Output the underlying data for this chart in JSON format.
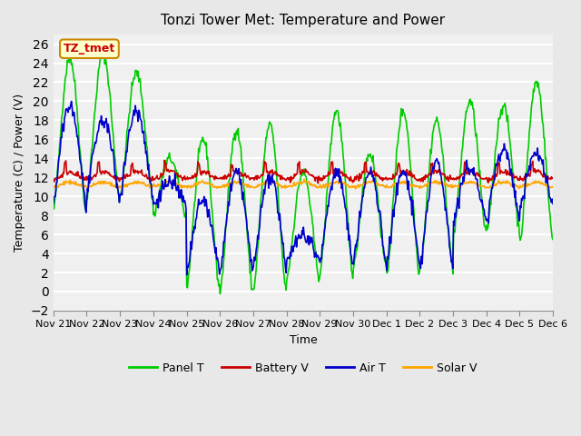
{
  "title": "Tonzi Tower Met: Temperature and Power",
  "xlabel": "Time",
  "ylabel": "Temperature (C) / Power (V)",
  "annotation": "TZ_tmet",
  "ylim": [
    -2,
    27
  ],
  "yticks": [
    -2,
    0,
    2,
    4,
    6,
    8,
    10,
    12,
    14,
    16,
    18,
    20,
    22,
    24,
    26
  ],
  "x_tick_labels": [
    "Nov 21",
    "Nov 22",
    "Nov 23",
    "Nov 24",
    "Nov 25",
    "Nov 26",
    "Nov 27",
    "Nov 28",
    "Nov 29",
    "Nov 30",
    "Dec 1",
    "Dec 2",
    "Dec 3",
    "Dec 4",
    "Dec 5",
    "Dec 6"
  ],
  "background_color": "#e8e8e8",
  "plot_bg_color": "#f0f0f0",
  "grid_color": "#ffffff",
  "panel_t_color": "#00cc00",
  "battery_v_color": "#cc0000",
  "air_t_color": "#0000cc",
  "solar_v_color": "#ffa500",
  "legend_labels": [
    "Panel T",
    "Battery V",
    "Air T",
    "Solar V"
  ],
  "num_days": 15,
  "points_per_day": 48
}
